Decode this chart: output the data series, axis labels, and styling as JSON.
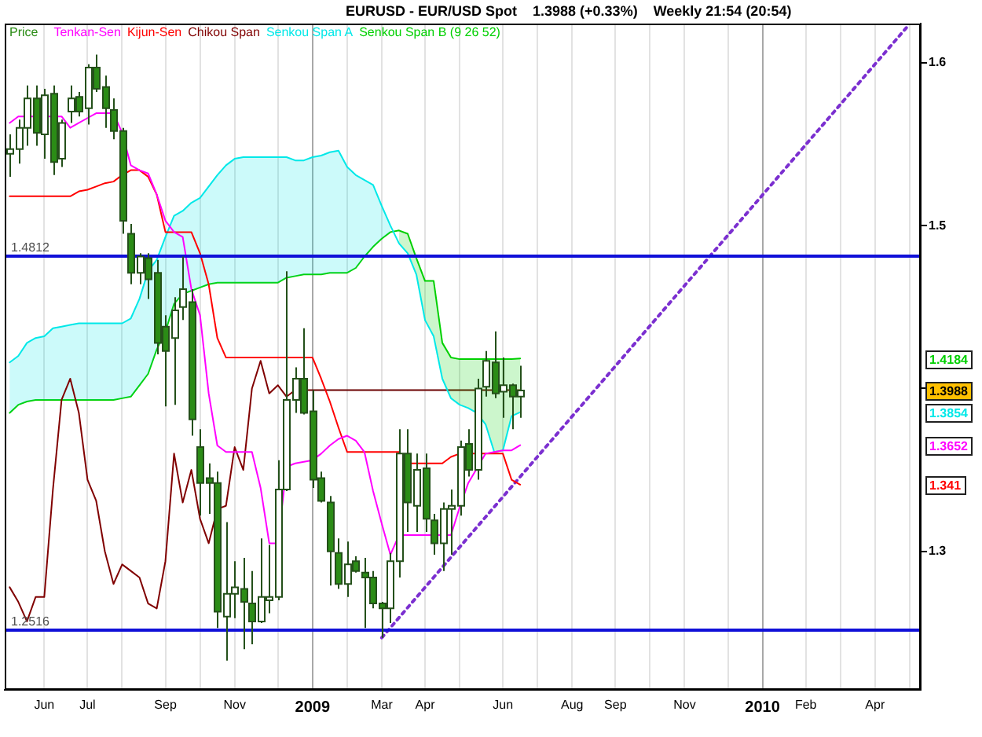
{
  "chart_data": {
    "type": "candlestick",
    "title": "EURUSD - EUR/USD Spot",
    "subtitle": "1.3988 (+0.33%)    Weekly 21:54 (20:54)",
    "x": [
      "2008-05-04",
      "2008-05-11",
      "2008-05-18",
      "2008-05-25",
      "2008-06-01",
      "2008-06-08",
      "2008-06-15",
      "2008-06-22",
      "2008-06-29",
      "2008-07-06",
      "2008-07-13",
      "2008-07-20",
      "2008-07-27",
      "2008-08-03",
      "2008-08-10",
      "2008-08-17",
      "2008-08-24",
      "2008-08-31",
      "2008-09-07",
      "2008-09-14",
      "2008-09-21",
      "2008-09-28",
      "2008-10-05",
      "2008-10-12",
      "2008-10-19",
      "2008-10-26",
      "2008-11-02",
      "2008-11-09",
      "2008-11-16",
      "2008-11-23",
      "2008-11-30",
      "2008-12-07",
      "2008-12-14",
      "2008-12-21",
      "2008-12-28",
      "2009-01-04",
      "2009-01-11",
      "2009-01-18",
      "2009-01-25",
      "2009-02-01",
      "2009-02-08",
      "2009-02-15",
      "2009-02-22",
      "2009-03-01",
      "2009-03-08",
      "2009-03-15",
      "2009-03-22",
      "2009-03-29",
      "2009-04-05",
      "2009-04-12",
      "2009-04-19",
      "2009-04-26",
      "2009-05-03",
      "2009-05-10",
      "2009-05-17",
      "2009-05-24",
      "2009-05-31",
      "2009-06-07",
      "2009-06-14",
      "2009-06-21"
    ],
    "xlim": [
      "2008-04-30",
      "2010-05-11"
    ],
    "xticks": [
      {
        "value": "2008-06-01",
        "label": "Jun"
      },
      {
        "value": "2008-07-06",
        "label": "Jul"
      },
      {
        "value": "2008-08-03",
        "label": null
      },
      {
        "value": "2008-09-07",
        "label": "Sep"
      },
      {
        "value": "2008-10-05",
        "label": null
      },
      {
        "value": "2008-11-02",
        "label": "Nov"
      },
      {
        "value": "2008-12-07",
        "label": null
      },
      {
        "value": "2009-01-04",
        "label": "2009"
      },
      {
        "value": "2009-02-01",
        "label": null
      },
      {
        "value": "2009-03-01",
        "label": "Mar"
      },
      {
        "value": "2009-04-05",
        "label": "Apr"
      },
      {
        "value": "2009-05-03",
        "label": null
      },
      {
        "value": "2009-06-07",
        "label": "Jun"
      },
      {
        "value": "2009-07-05",
        "label": null
      },
      {
        "value": "2009-08-02",
        "label": "Aug"
      },
      {
        "value": "2009-09-06",
        "label": "Sep"
      },
      {
        "value": "2009-10-04",
        "label": null
      },
      {
        "value": "2009-11-01",
        "label": "Nov"
      },
      {
        "value": "2009-12-06",
        "label": null
      },
      {
        "value": "2010-01-03",
        "label": "2010"
      },
      {
        "value": "2010-02-07",
        "label": "Feb"
      },
      {
        "value": "2010-03-07",
        "label": null
      },
      {
        "value": "2010-04-04",
        "label": "Apr"
      },
      {
        "value": "2010-05-02",
        "label": null
      }
    ],
    "ylim": [
      1.215,
      1.624
    ],
    "yticks": [
      1.3,
      {
        "value": 1.4,
        "label": null
      },
      1.5,
      1.6
    ],
    "grid": "x",
    "legend": "top left",
    "series": [
      {
        "name": "Price",
        "type": "candlestick",
        "color": "#2b8c16",
        "colors": [
          "#ffffff",
          "#ffffff",
          "#ffffff",
          "#2b8c16",
          "#ffffff",
          "#2b8c16",
          "#ffffff",
          "#ffffff",
          "#2b8c16",
          "#ffffff",
          "#2b8c16",
          "#2b8c16",
          "#2b8c16",
          "#2b8c16",
          "#2b8c16",
          "#ffffff",
          "#2b8c16",
          "#2b8c16",
          "#2b8c16",
          "#ffffff",
          "#ffffff",
          "#2b8c16",
          "#2b8c16",
          "#2b8c16",
          "#2b8c16",
          "#ffffff",
          "#ffffff",
          "#2b8c16",
          "#2b8c16",
          "#ffffff",
          "#ffffff",
          "#ffffff",
          "#ffffff",
          "#ffffff",
          "#2b8c16",
          "#2b8c16",
          "#2b8c16",
          "#2b8c16",
          "#2b8c16",
          "#ffffff",
          "#2b8c16",
          "#2b8c16",
          "#2b8c16",
          "#2b8c16",
          "#ffffff",
          "#ffffff",
          "#2b8c16",
          "#ffffff",
          "#2b8c16",
          "#2b8c16",
          "#ffffff",
          "#ffffff",
          "#ffffff",
          "#2b8c16",
          "#ffffff",
          "#ffffff",
          "#2b8c16",
          "#ffffff",
          "#2b8c16",
          "#ffffff"
        ],
        "ohlc": [
          [
            1.544,
            1.556,
            1.53,
            1.547
          ],
          [
            1.547,
            1.565,
            1.538,
            1.56
          ],
          [
            1.56,
            1.586,
            1.549,
            1.578
          ],
          [
            1.578,
            1.586,
            1.549,
            1.557
          ],
          [
            1.556,
            1.584,
            1.541,
            1.58
          ],
          [
            1.581,
            1.586,
            1.531,
            1.539
          ],
          [
            1.541,
            1.565,
            1.536,
            1.563
          ],
          [
            1.57,
            1.586,
            1.563,
            1.578
          ],
          [
            1.579,
            1.582,
            1.567,
            1.57
          ],
          [
            1.572,
            1.599,
            1.562,
            1.597
          ],
          [
            1.597,
            1.605,
            1.582,
            1.584
          ],
          [
            1.585,
            1.592,
            1.56,
            1.572
          ],
          [
            1.571,
            1.578,
            1.553,
            1.558
          ],
          [
            1.558,
            1.56,
            1.495,
            1.503
          ],
          [
            1.495,
            1.501,
            1.464,
            1.471
          ],
          [
            1.471,
            1.483,
            1.464,
            1.481
          ],
          [
            1.48,
            1.483,
            1.455,
            1.467
          ],
          [
            1.471,
            1.479,
            1.421,
            1.428
          ],
          [
            1.438,
            1.445,
            1.389,
            1.423
          ],
          [
            1.431,
            1.456,
            1.39,
            1.448
          ],
          [
            1.45,
            1.481,
            1.442,
            1.461
          ],
          [
            1.453,
            1.461,
            1.371,
            1.381
          ],
          [
            1.364,
            1.375,
            1.322,
            1.342
          ],
          [
            1.345,
            1.354,
            1.323,
            1.342
          ],
          [
            1.342,
            1.349,
            1.253,
            1.263
          ],
          [
            1.26,
            1.318,
            1.233,
            1.274
          ],
          [
            1.274,
            1.294,
            1.259,
            1.278
          ],
          [
            1.277,
            1.296,
            1.24,
            1.269
          ],
          [
            1.268,
            1.288,
            1.243,
            1.257
          ],
          [
            1.257,
            1.308,
            1.256,
            1.272
          ],
          [
            1.27,
            1.304,
            1.262,
            1.272
          ],
          [
            1.272,
            1.356,
            1.27,
            1.338
          ],
          [
            1.338,
            1.472,
            1.337,
            1.393
          ],
          [
            1.393,
            1.413,
            1.385,
            1.406
          ],
          [
            1.406,
            1.437,
            1.384,
            1.385
          ],
          [
            1.386,
            1.399,
            1.339,
            1.344
          ],
          [
            1.345,
            1.349,
            1.33,
            1.331
          ],
          [
            1.33,
            1.334,
            1.279,
            1.3
          ],
          [
            1.299,
            1.308,
            1.277,
            1.28
          ],
          [
            1.28,
            1.306,
            1.272,
            1.292
          ],
          [
            1.294,
            1.297,
            1.287,
            1.288
          ],
          [
            1.287,
            1.296,
            1.253,
            1.284
          ],
          [
            1.284,
            1.288,
            1.265,
            1.268
          ],
          [
            1.268,
            1.269,
            1.247,
            1.265
          ],
          [
            1.265,
            1.299,
            1.256,
            1.294
          ],
          [
            1.294,
            1.375,
            1.284,
            1.36
          ],
          [
            1.36,
            1.375,
            1.312,
            1.33
          ],
          [
            1.328,
            1.36,
            1.312,
            1.35
          ],
          [
            1.351,
            1.36,
            1.312,
            1.32
          ],
          [
            1.319,
            1.323,
            1.298,
            1.305
          ],
          [
            1.305,
            1.33,
            1.288,
            1.326
          ],
          [
            1.326,
            1.338,
            1.298,
            1.328
          ],
          [
            1.328,
            1.368,
            1.322,
            1.364
          ],
          [
            1.366,
            1.375,
            1.346,
            1.35
          ],
          [
            1.35,
            1.406,
            1.344,
            1.4
          ],
          [
            1.401,
            1.423,
            1.395,
            1.417
          ],
          [
            1.416,
            1.435,
            1.394,
            1.397
          ],
          [
            1.398,
            1.419,
            1.382,
            1.402
          ],
          [
            1.402,
            1.403,
            1.375,
            1.395
          ],
          [
            1.395,
            1.414,
            1.382,
            1.3988
          ]
        ]
      },
      {
        "name": "Tenkan-Sen",
        "type": "line",
        "color": "#ff00ff",
        "values": [
          1.563,
          1.567,
          1.567,
          1.567,
          1.567,
          1.567,
          1.567,
          1.56,
          1.563,
          1.566,
          1.569,
          1.569,
          1.569,
          1.557,
          1.537,
          1.534,
          1.532,
          1.519,
          1.503,
          1.496,
          1.493,
          1.461,
          1.445,
          1.397,
          1.365,
          1.361,
          1.361,
          1.361,
          1.361,
          1.339,
          1.305,
          1.305,
          1.352,
          1.354,
          1.355,
          1.356,
          1.36,
          1.365,
          1.369,
          1.371,
          1.368,
          1.361,
          1.337,
          1.317,
          1.298,
          1.31,
          1.31,
          1.31,
          1.31,
          1.31,
          1.31,
          1.31,
          1.327,
          1.342,
          1.351,
          1.36,
          1.361,
          1.362,
          1.362,
          1.3652
        ]
      },
      {
        "name": "Kijun-Sen",
        "type": "line",
        "color": "#ff0000",
        "values": [
          1.518,
          1.518,
          1.518,
          1.518,
          1.518,
          1.518,
          1.518,
          1.518,
          1.521,
          1.522,
          1.524,
          1.526,
          1.527,
          1.531,
          1.534,
          1.534,
          1.53,
          1.519,
          1.496,
          1.496,
          1.496,
          1.496,
          1.483,
          1.464,
          1.431,
          1.419,
          1.419,
          1.419,
          1.419,
          1.419,
          1.419,
          1.419,
          1.419,
          1.419,
          1.419,
          1.419,
          1.406,
          1.392,
          1.376,
          1.361,
          1.361,
          1.361,
          1.361,
          1.361,
          1.361,
          1.361,
          1.354,
          1.354,
          1.354,
          1.354,
          1.354,
          1.358,
          1.36,
          1.36,
          1.36,
          1.36,
          1.36,
          1.36,
          1.344,
          1.341
        ]
      },
      {
        "name": "Chikou Span",
        "type": "line",
        "color": "#800000",
        "values": [
          1.278,
          1.269,
          1.257,
          1.272,
          1.272,
          1.338,
          1.393,
          1.406,
          1.385,
          1.344,
          1.331,
          1.3,
          1.28,
          1.292,
          1.288,
          1.284,
          1.268,
          1.265,
          1.294,
          1.36,
          1.33,
          1.35,
          1.32,
          1.305,
          1.326,
          1.328,
          1.364,
          1.35,
          1.4,
          1.417,
          1.397,
          1.402,
          1.395,
          1.399,
          null,
          null,
          null,
          null,
          null,
          null,
          null,
          null,
          null,
          null,
          null,
          null,
          null,
          null,
          null,
          null,
          null,
          null,
          null,
          null,
          null,
          null,
          null,
          null,
          null,
          null
        ]
      },
      {
        "name": "Senkou Span A",
        "type": "line",
        "color": "#00e8e8",
        "values": [
          1.416,
          1.42,
          1.428,
          1.431,
          1.432,
          1.437,
          1.438,
          1.439,
          1.44,
          1.44,
          1.44,
          1.44,
          1.44,
          1.44,
          1.443,
          1.455,
          1.472,
          1.479,
          1.493,
          1.506,
          1.509,
          1.514,
          1.517,
          1.524,
          1.531,
          1.537,
          1.541,
          1.542,
          1.542,
          1.542,
          1.542,
          1.542,
          1.542,
          1.54,
          1.54,
          1.542,
          1.543,
          1.545,
          1.546,
          1.536,
          1.531,
          1.528,
          1.525,
          1.512,
          1.5,
          1.489,
          1.483,
          1.47,
          1.442,
          1.432,
          1.406,
          1.394,
          1.39,
          1.388,
          1.385,
          1.378,
          1.361,
          1.362,
          1.383,
          1.3854
        ],
        "upper": [
          1.416,
          1.42,
          1.428,
          1.431,
          1.432,
          1.437,
          1.438,
          1.439,
          1.44,
          1.44,
          1.44,
          1.44,
          1.44,
          1.44,
          1.443,
          1.455,
          1.472,
          1.479,
          1.493,
          1.506,
          1.509,
          1.514,
          1.517,
          1.524,
          1.531,
          1.537,
          1.541,
          1.542,
          1.542,
          1.542,
          1.542,
          1.542,
          1.542,
          1.54,
          1.54,
          1.542,
          1.543,
          1.545,
          1.546,
          1.536,
          1.531,
          1.528,
          1.525,
          1.512,
          1.5,
          null,
          null,
          null,
          null,
          null,
          null,
          null,
          null,
          null,
          null,
          null,
          null,
          null,
          null,
          null
        ],
        "lower": [
          1.385,
          1.39,
          1.392,
          1.393,
          1.393,
          1.393,
          1.393,
          1.393,
          1.393,
          1.393,
          1.393,
          1.393,
          1.393,
          1.394,
          1.395,
          1.402,
          1.409,
          1.424,
          1.435,
          1.452,
          1.458,
          1.46,
          1.462,
          1.464,
          1.465,
          1.465,
          1.465,
          1.465,
          1.465,
          1.465,
          1.465,
          1.465,
          1.468,
          1.469,
          1.47,
          1.47,
          1.47,
          1.471,
          1.471,
          1.471,
          1.474,
          1.481,
          1.487,
          1.492,
          1.496,
          null,
          null,
          null,
          null,
          null,
          null,
          null,
          null,
          null,
          null,
          null,
          null,
          null,
          null,
          null
        ]
      },
      {
        "name": "Senkou Span B (9 26 52)",
        "type": "line",
        "color": "#00d000",
        "values": [
          1.385,
          1.39,
          1.392,
          1.393,
          1.393,
          1.393,
          1.393,
          1.393,
          1.393,
          1.393,
          1.393,
          1.393,
          1.393,
          1.394,
          1.395,
          1.402,
          1.409,
          1.424,
          1.435,
          1.452,
          1.458,
          1.46,
          1.462,
          1.464,
          1.465,
          1.465,
          1.465,
          1.465,
          1.465,
          1.465,
          1.465,
          1.465,
          1.468,
          1.469,
          1.47,
          1.47,
          1.47,
          1.471,
          1.471,
          1.471,
          1.474,
          1.481,
          1.487,
          1.492,
          1.496,
          1.497,
          1.495,
          1.48,
          1.466,
          1.466,
          1.428,
          1.419,
          1.418,
          1.418,
          1.418,
          1.418,
          1.418,
          1.418,
          1.418,
          1.4184
        ],
        "upper": [
          null,
          null,
          null,
          null,
          null,
          null,
          null,
          null,
          null,
          null,
          null,
          null,
          null,
          null,
          null,
          null,
          null,
          null,
          null,
          null,
          null,
          null,
          null,
          null,
          null,
          null,
          null,
          null,
          null,
          null,
          null,
          null,
          null,
          null,
          null,
          null,
          null,
          null,
          null,
          null,
          null,
          null,
          null,
          null,
          null,
          1.497,
          1.495,
          1.48,
          1.466,
          1.466,
          1.428,
          1.419,
          1.418,
          1.418,
          1.418,
          1.418,
          1.418,
          1.418,
          1.418,
          1.4184
        ],
        "lower": [
          null,
          null,
          null,
          null,
          null,
          null,
          null,
          null,
          null,
          null,
          null,
          null,
          null,
          null,
          null,
          null,
          null,
          null,
          null,
          null,
          null,
          null,
          null,
          null,
          null,
          null,
          null,
          null,
          null,
          null,
          null,
          null,
          null,
          null,
          null,
          null,
          null,
          null,
          null,
          null,
          null,
          null,
          null,
          null,
          null,
          1.489,
          1.483,
          1.47,
          1.442,
          1.432,
          1.406,
          1.394,
          1.39,
          1.388,
          1.385,
          1.378,
          1.361,
          1.362,
          1.383,
          1.3854
        ]
      },
      {
        "type": "line",
        "color": "#6b0000",
        "x": [
          "2008-12-21",
          "2009-06-21"
        ],
        "values": [
          1.399,
          1.399
        ]
      },
      {
        "type": "line",
        "color": "#7b2fd0",
        "line_style": "dotted",
        "x": [
          "2009-03-01",
          "2010-04-30"
        ],
        "values": [
          1.247,
          1.622
        ]
      }
    ],
    "ref_lines": [
      {
        "axis": "y",
        "value": 1.4812,
        "label": "1.4812",
        "color": "#1010d8"
      },
      {
        "axis": "y",
        "value": 1.2516,
        "label": "1.2516",
        "color": "#1010d8"
      }
    ],
    "annotations": [
      "1.4184",
      "1.3988",
      "1.3854",
      "1.3652",
      "1.341"
    ]
  }
}
